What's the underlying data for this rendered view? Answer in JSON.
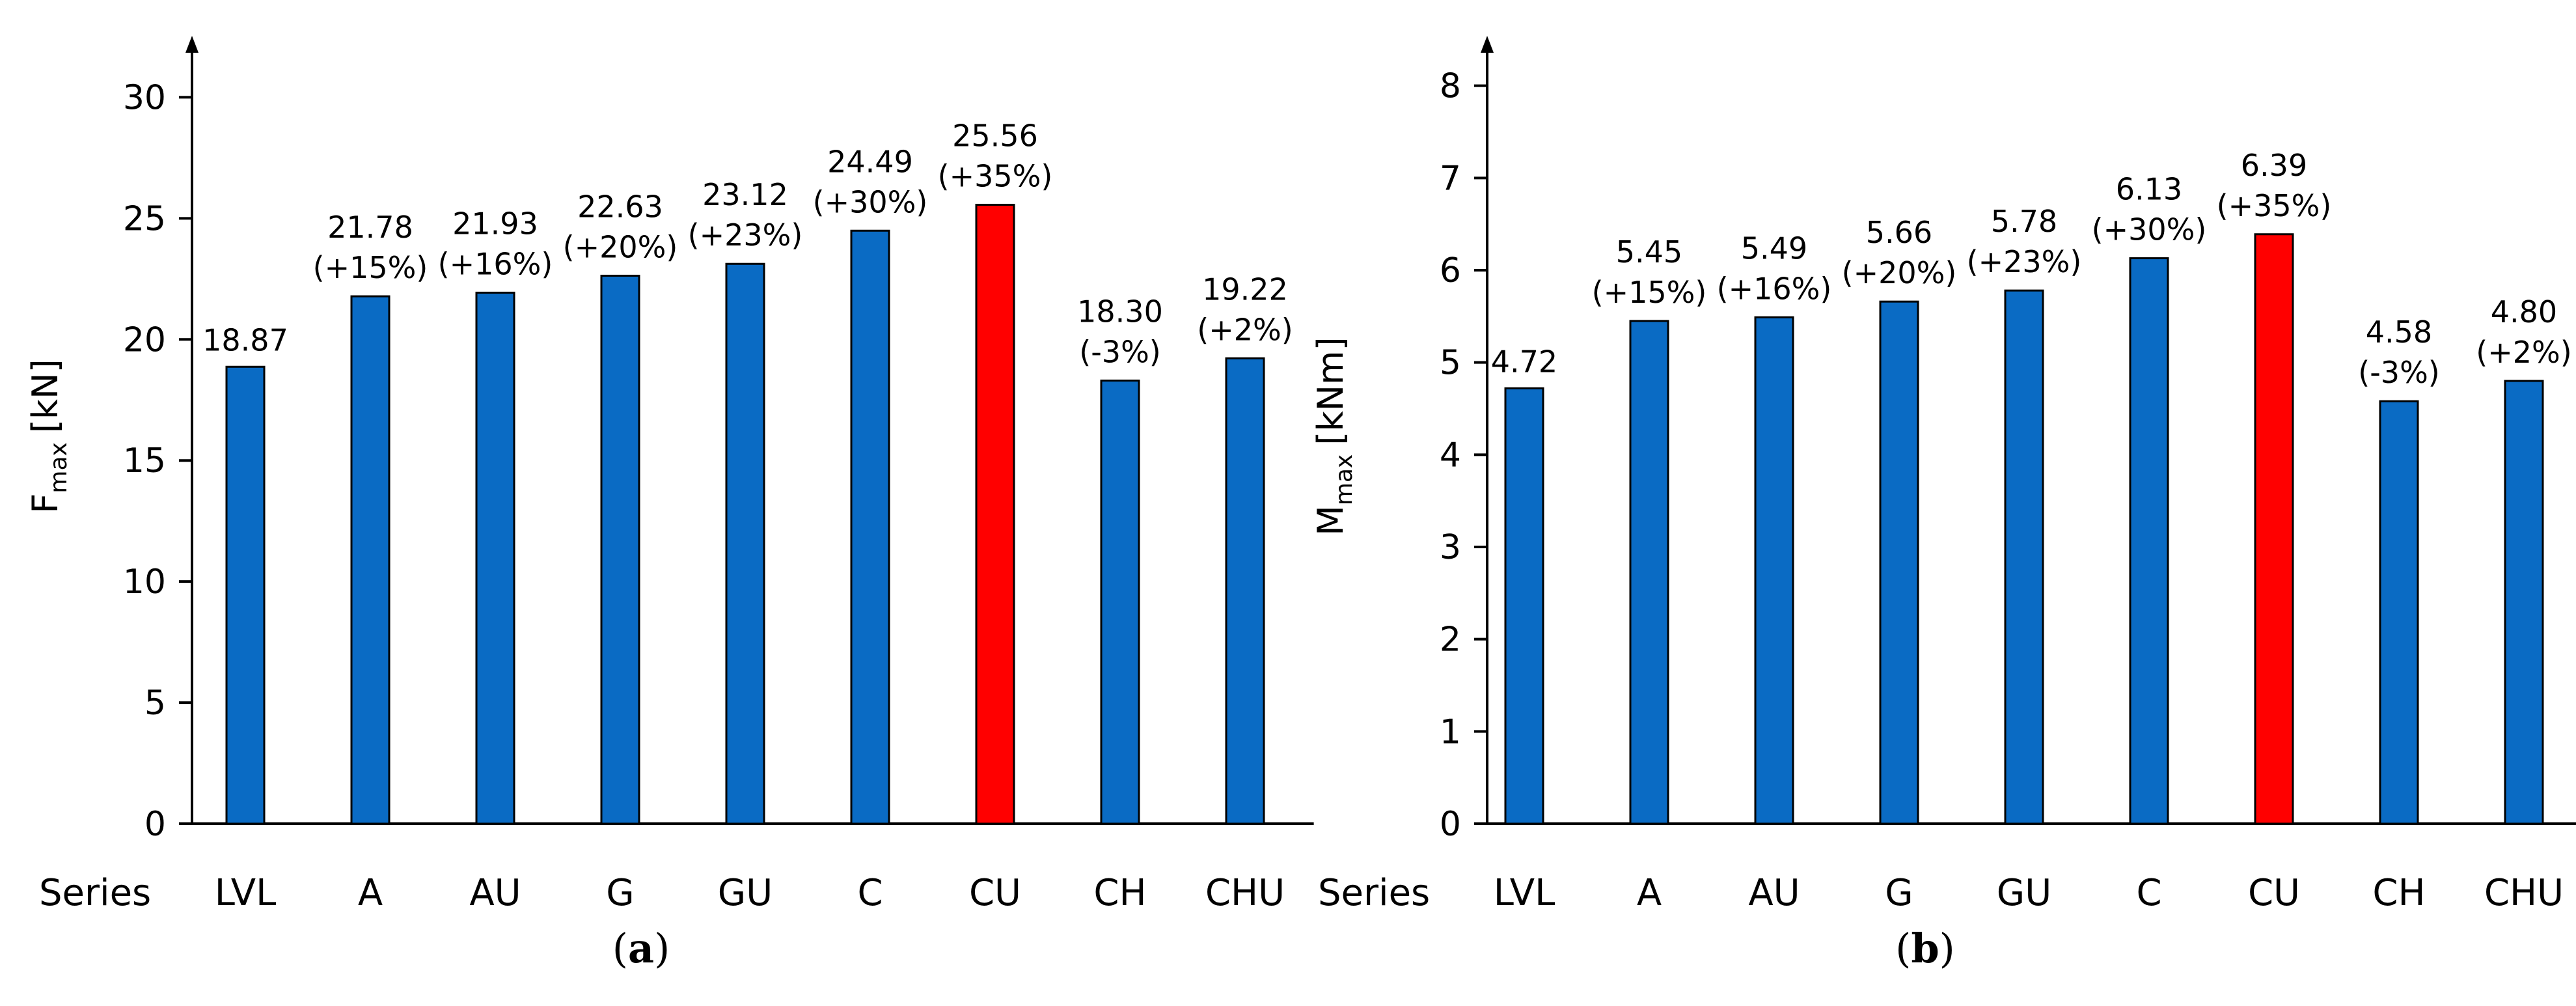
{
  "colors": {
    "normal": "#0a6bc4",
    "highlight": "#ff0000",
    "outline": "#000000",
    "axis": "#000000"
  },
  "chart_data": [
    {
      "type": "bar",
      "panel_label": "a",
      "ylabel_main": "F",
      "ylabel_sub": "max",
      "ylabel_unit": "[kN]",
      "series_word": "Series",
      "ylim": [
        0,
        32
      ],
      "yticks": [
        0,
        5,
        10,
        15,
        20,
        25,
        30
      ],
      "categories": [
        "LVL",
        "A",
        "AU",
        "G",
        "GU",
        "C",
        "CU",
        "CH",
        "CHU"
      ],
      "values": [
        18.87,
        21.78,
        21.93,
        22.63,
        23.12,
        24.49,
        25.56,
        18.3,
        19.22
      ],
      "value_labels": [
        "18.87",
        "21.78",
        "21.93",
        "22.63",
        "23.12",
        "24.49",
        "25.56",
        "18.30",
        "19.22"
      ],
      "pct_labels": [
        "",
        "(+15%)",
        "(+16%)",
        "(+20%)",
        "(+23%)",
        "(+30%)",
        "(+35%)",
        "(-3%)",
        "(+2%)"
      ],
      "highlight_index": 6
    },
    {
      "type": "bar",
      "panel_label": "b",
      "ylabel_main": "M",
      "ylabel_sub": "max",
      "ylabel_unit": "[kNm]",
      "series_word": "Series",
      "ylim": [
        0,
        8.4
      ],
      "yticks": [
        0,
        1,
        2,
        3,
        4,
        5,
        6,
        7,
        8
      ],
      "categories": [
        "LVL",
        "A",
        "AU",
        "G",
        "GU",
        "C",
        "CU",
        "CH",
        "CHU"
      ],
      "values": [
        4.72,
        5.45,
        5.49,
        5.66,
        5.78,
        6.13,
        6.39,
        4.58,
        4.8
      ],
      "value_labels": [
        "4.72",
        "5.45",
        "5.49",
        "5.66",
        "5.78",
        "6.13",
        "6.39",
        "4.58",
        "4.80"
      ],
      "pct_labels": [
        "",
        "(+15%)",
        "(+16%)",
        "(+20%)",
        "(+23%)",
        "(+30%)",
        "(+35%)",
        "(-3%)",
        "(+2%)"
      ],
      "highlight_index": 6
    }
  ]
}
